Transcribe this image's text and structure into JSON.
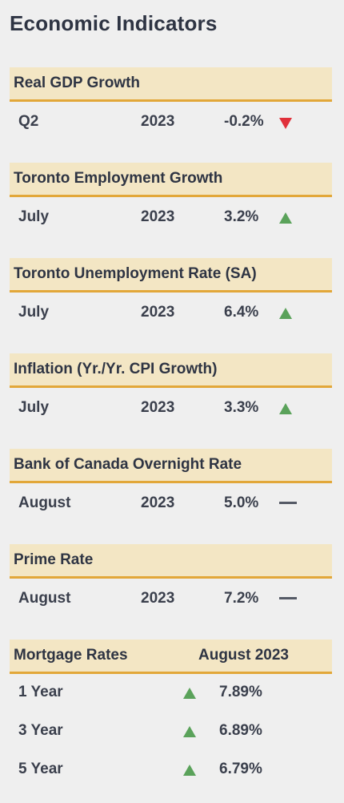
{
  "title": "Economic Indicators",
  "colors": {
    "header_bg": "#f3e6c4",
    "header_border": "#e2a739",
    "up": "#5aa25a",
    "down": "#e0303a",
    "flat": "#555a66"
  },
  "indicators": [
    {
      "name": "Real GDP Growth",
      "period": "Q2",
      "year": "2023",
      "value": "-0.2%",
      "trend": "down-icon"
    },
    {
      "name": "Toronto Employment Growth",
      "period": "July",
      "year": "2023",
      "value": "3.2%",
      "trend": "up-icon"
    },
    {
      "name": "Toronto Unemployment Rate (SA)",
      "period": "July",
      "year": "2023",
      "value": "6.4%",
      "trend": "up-icon"
    },
    {
      "name": "Inflation (Yr./Yr. CPI Growth)",
      "period": "July",
      "year": "2023",
      "value": "3.3%",
      "trend": "up-icon"
    },
    {
      "name": "Bank of Canada Overnight Rate",
      "period": "August",
      "year": "2023",
      "value": "5.0%",
      "trend": "flat-icon"
    },
    {
      "name": "Prime Rate",
      "period": "August",
      "year": "2023",
      "value": "7.2%",
      "trend": "flat-icon"
    }
  ],
  "mortgage": {
    "header": "Mortgage Rates",
    "date": "August 2023",
    "rows": [
      {
        "term": "1 Year",
        "value": "7.89%",
        "trend": "up-icon"
      },
      {
        "term": "3 Year",
        "value": "6.89%",
        "trend": "up-icon"
      },
      {
        "term": "5 Year",
        "value": "6.79%",
        "trend": "up-icon"
      }
    ]
  }
}
